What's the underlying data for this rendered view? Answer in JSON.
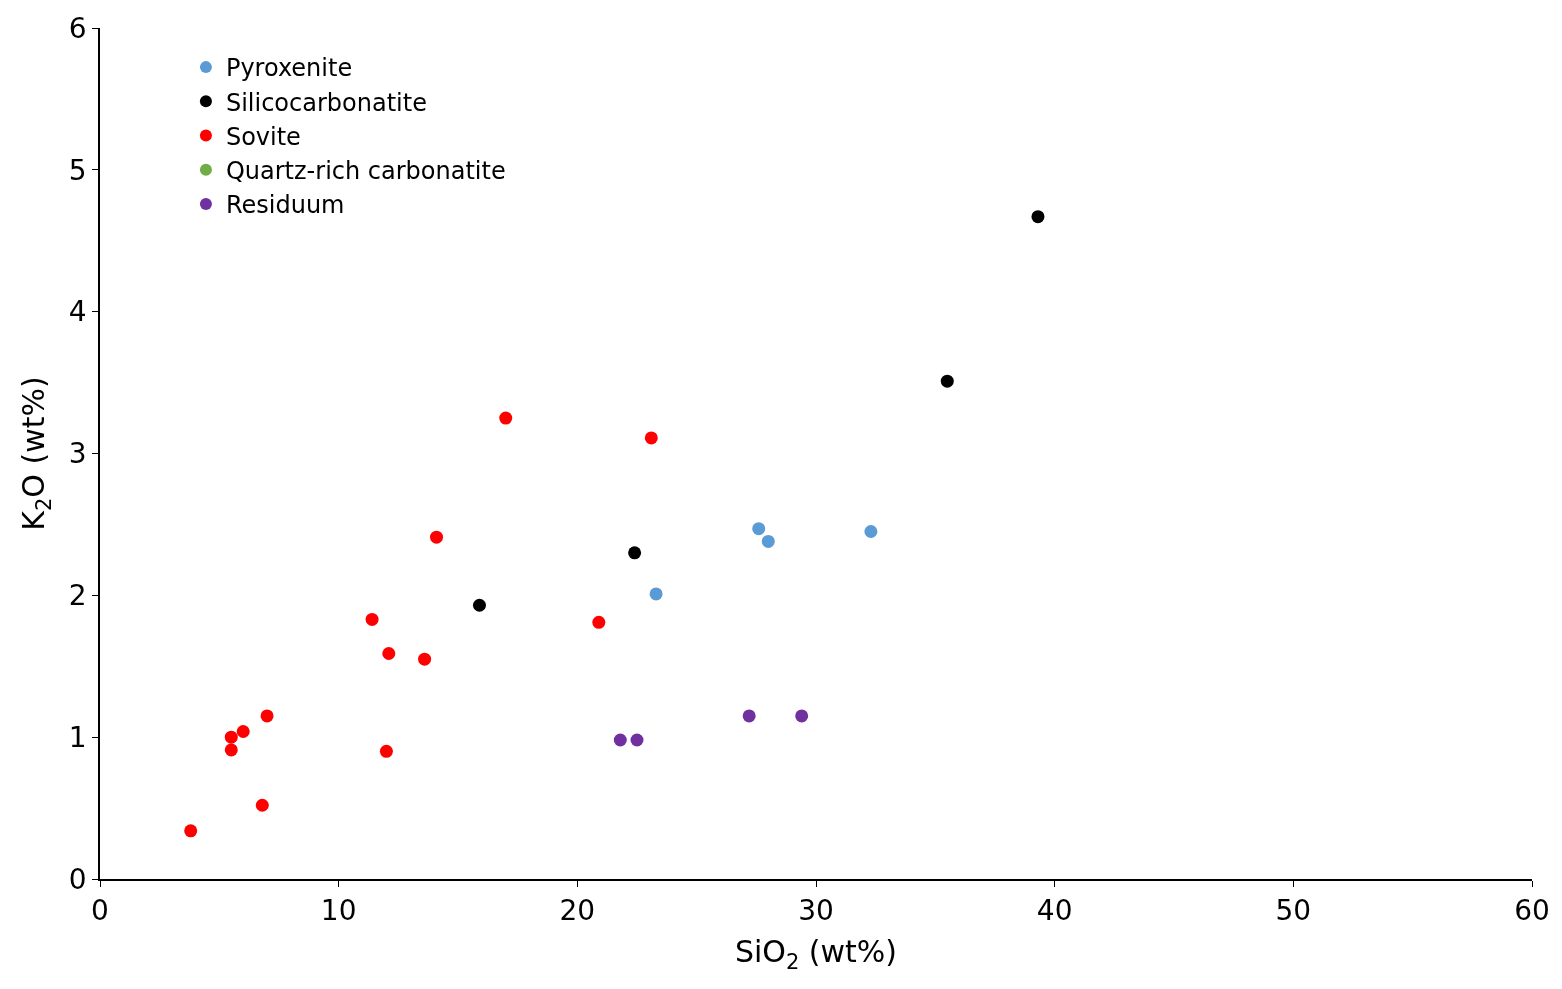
{
  "chart_data": {
    "type": "scatter",
    "xlabel": "SiO$_{2}$ (wt%)",
    "ylabel": "K$_{2}$O (wt%)",
    "xlim": [
      0,
      60
    ],
    "xticks": [
      0,
      10,
      20,
      30,
      40,
      50,
      60
    ],
    "ylim": [
      0,
      6
    ],
    "yticks": [
      0,
      1,
      2,
      3,
      4,
      5,
      6
    ],
    "grid": false,
    "legend": "top left",
    "marker": "circle",
    "series": [
      {
        "name": "Pyroxenite",
        "color": "#5b9bd5",
        "x": [
          23.3,
          27.6,
          28.0,
          32.3
        ],
        "values": [
          2.01,
          2.47,
          2.38,
          2.45
        ]
      },
      {
        "name": "Silicocarbonatite",
        "color": "#000000",
        "x": [
          15.9,
          22.4,
          35.5,
          39.3
        ],
        "values": [
          1.93,
          2.3,
          3.51,
          4.67
        ]
      },
      {
        "name": "Sovite",
        "color": "#ff0000",
        "x": [
          3.8,
          5.5,
          5.5,
          6.0,
          7.0,
          6.8,
          11.4,
          12.1,
          12.0,
          13.6,
          14.1,
          17.0,
          20.9,
          23.1
        ],
        "values": [
          0.34,
          1.0,
          0.91,
          1.04,
          1.15,
          0.52,
          1.83,
          1.59,
          0.9,
          1.55,
          2.41,
          3.25,
          1.81,
          3.11
        ]
      },
      {
        "name": "Quartz-rich carbonatite",
        "color": "#70ad47"
      },
      {
        "name": "Residuum",
        "color": "#7030a0",
        "x": [
          21.8,
          22.5,
          27.2,
          29.4
        ],
        "values": [
          0.98,
          0.98,
          1.15,
          1.15
        ]
      }
    ]
  }
}
